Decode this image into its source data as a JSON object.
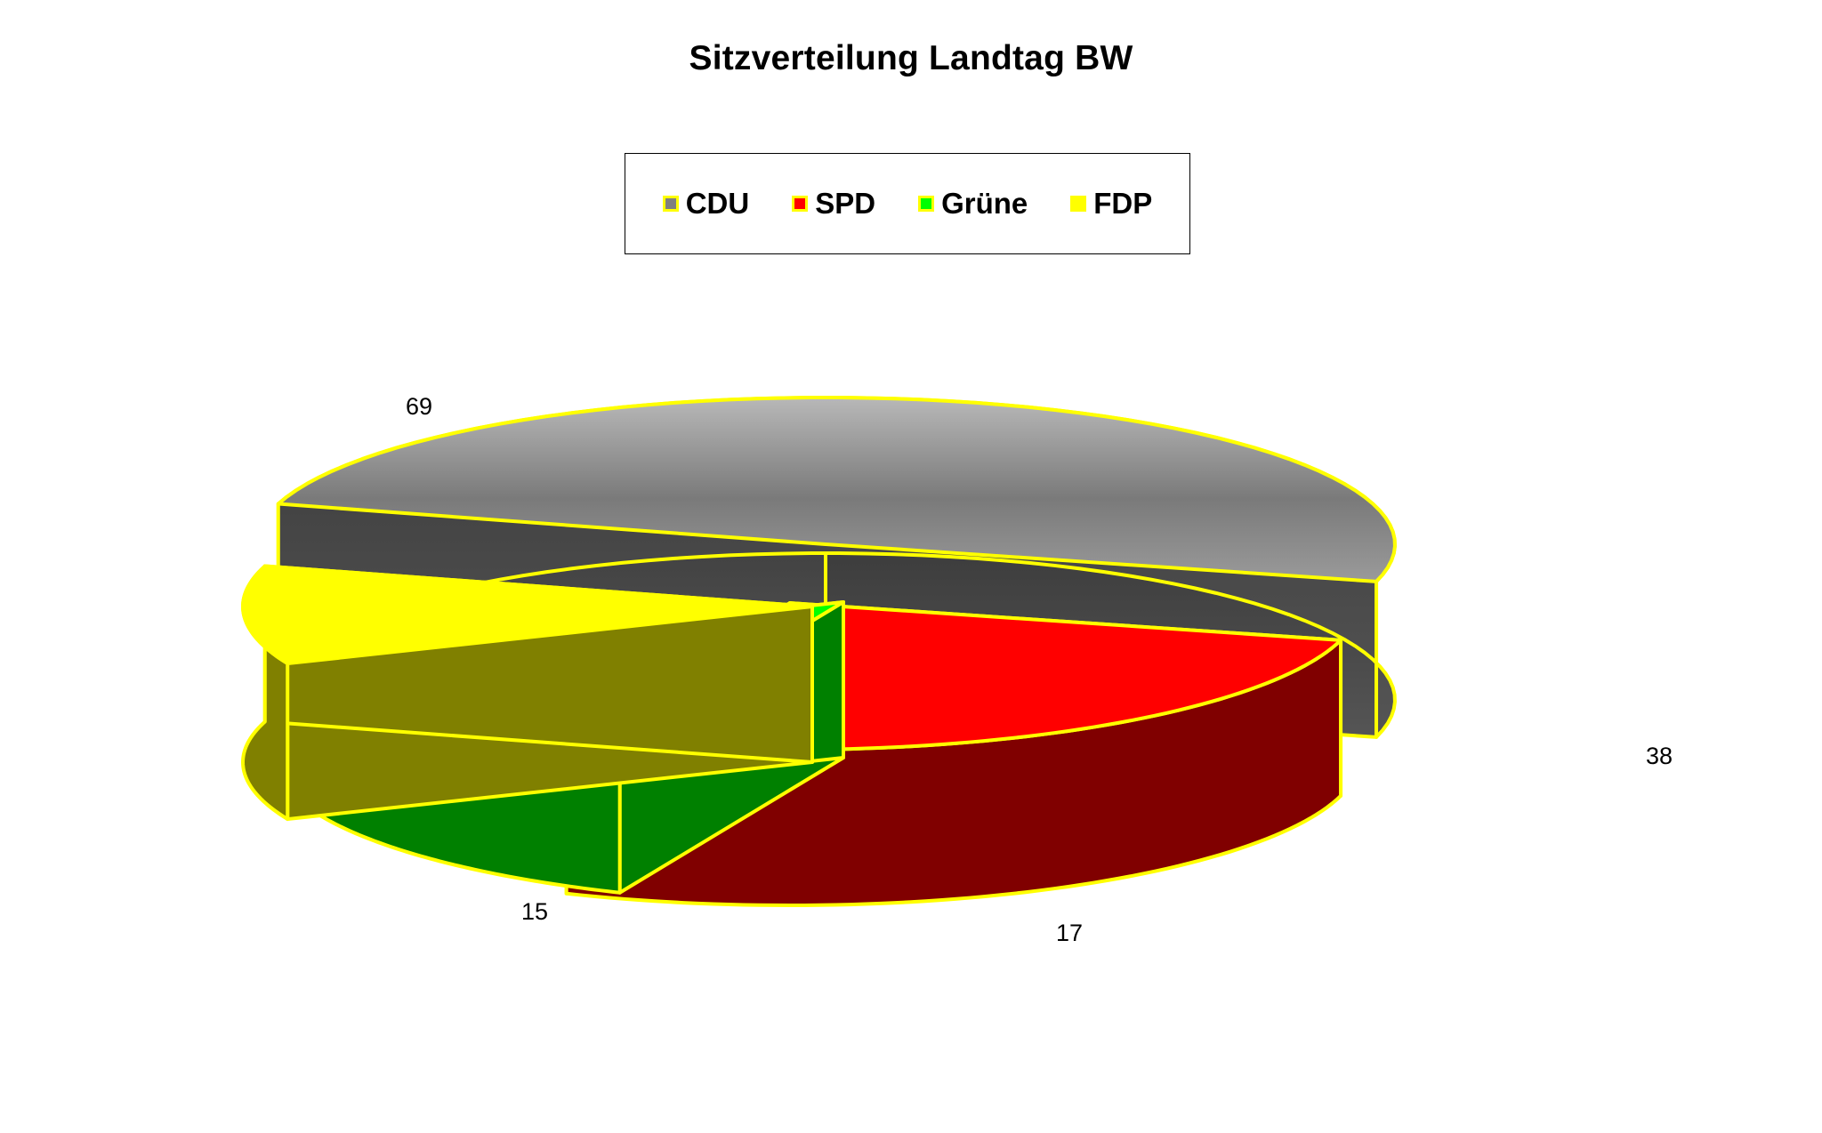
{
  "chart_data": {
    "type": "pie",
    "title": "Sitzverteilung Landtag BW",
    "legend_position": "top",
    "slices": [
      {
        "label": "CDU",
        "value": 69,
        "color": "#808080"
      },
      {
        "label": "SPD",
        "value": 38,
        "color": "#ff0000"
      },
      {
        "label": "Grüne",
        "value": 17,
        "color": "#00ff00"
      },
      {
        "label": "FDP",
        "value": 15,
        "color": "#ffff00"
      }
    ],
    "outline_color": "#ffff00"
  }
}
